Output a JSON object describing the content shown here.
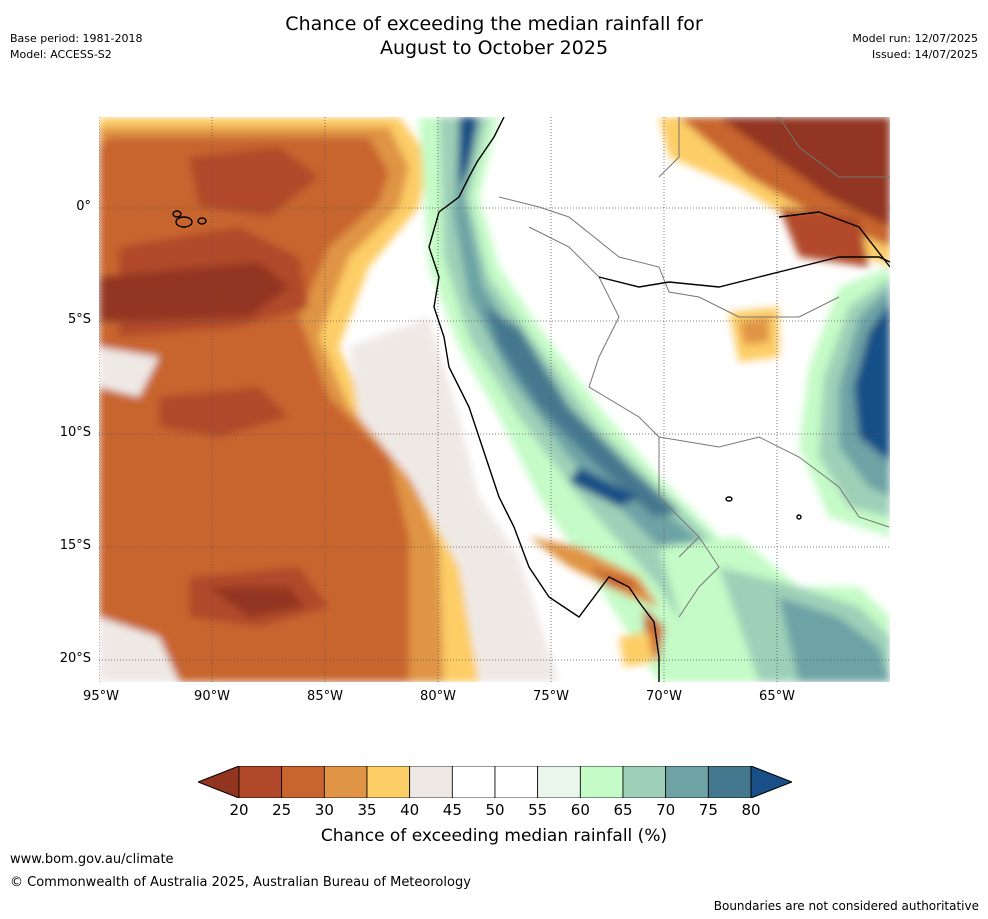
{
  "header": {
    "title_line1": "Chance of exceeding the median rainfall for",
    "title_line2": "August to October 2025",
    "base_period": "Base period: 1981-2018",
    "model": "Model: ACCESS-S2",
    "model_run": "Model run: 12/07/2025",
    "issued": "Issued: 14/07/2025"
  },
  "map": {
    "lat_labels": [
      "0°",
      "5°S",
      "10°S",
      "15°S",
      "20°S"
    ],
    "lon_labels": [
      "95°W",
      "90°W",
      "85°W",
      "80°W",
      "75°W",
      "70°W",
      "65°W"
    ]
  },
  "legend": {
    "title": "Chance of exceeding median rainfall (%)",
    "ticks": [
      "20",
      "25",
      "30",
      "35",
      "40",
      "45",
      "50",
      "55",
      "60",
      "65",
      "70",
      "75",
      "80"
    ],
    "colors": [
      "#923520",
      "#b14829",
      "#c8652f",
      "#e09445",
      "#fdcd66",
      "#efe9e6",
      "#ffffff",
      "#ffffff",
      "#eaf5ec",
      "#c4fbc6",
      "#9ed0b8",
      "#6da3a5",
      "#44788f",
      "#184f86"
    ]
  },
  "footer": {
    "url": "www.bom.gov.au/climate",
    "copyright": "© Commonwealth of Australia 2025, Australian Bureau of Meteorology",
    "disclaimer": "Boundaries are not considered authoritative"
  }
}
